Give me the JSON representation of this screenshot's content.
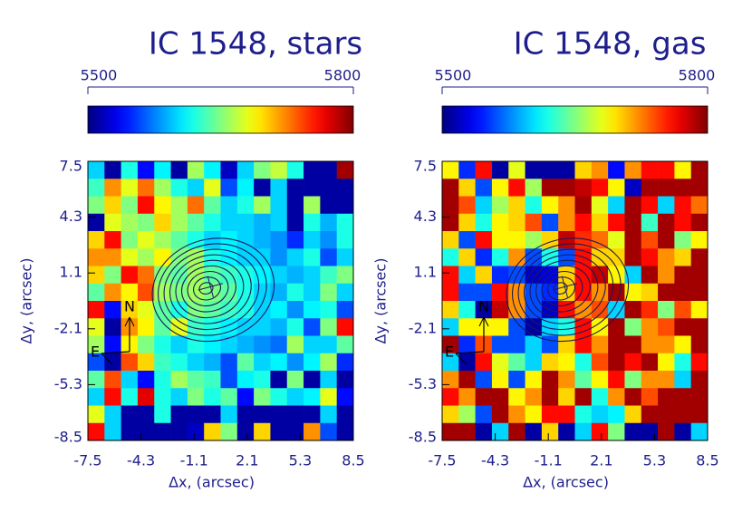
{
  "chart_data": [
    {
      "type": "heatmap",
      "title": "IC 1548, stars",
      "xlabel": "Δx, (arcsec)",
      "ylabel": "Δy, (arcsec)",
      "xlim": [
        -7.5,
        8.5
      ],
      "ylim": [
        -8.5,
        7.5
      ],
      "xticks": [
        -7.5,
        -4.3,
        -1.1,
        2.1,
        5.3,
        8.5
      ],
      "yticks": [
        -8.5,
        -5.3,
        -2.1,
        1.1,
        4.3,
        7.5
      ],
      "zlim": [
        5500,
        5800
      ],
      "cbar_ticks": [
        5500,
        5800
      ],
      "compass_labels": [
        "N",
        "E"
      ],
      "values": [
        [
          5600,
          5510,
          5620,
          5540,
          5610,
          5510,
          5660,
          5610,
          5520,
          5600,
          5650,
          5670,
          5620,
          5510,
          5510,
          5790
        ],
        [
          5630,
          5720,
          5680,
          5730,
          5660,
          5620,
          5600,
          5680,
          5560,
          5610,
          5510,
          5600,
          5510,
          5510,
          5510,
          5510
        ],
        [
          5650,
          5700,
          5650,
          5760,
          5690,
          5660,
          5730,
          5640,
          5600,
          5620,
          5660,
          5600,
          5510,
          5660,
          5510,
          5510
        ],
        [
          5510,
          5680,
          5660,
          5650,
          5700,
          5660,
          5640,
          5620,
          5600,
          5600,
          5590,
          5600,
          5510,
          5620,
          5590,
          5620
        ],
        [
          5700,
          5760,
          5650,
          5680,
          5660,
          5640,
          5620,
          5600,
          5610,
          5600,
          5590,
          5580,
          5550,
          5600,
          5580,
          5620
        ],
        [
          5720,
          5720,
          5680,
          5660,
          5690,
          5650,
          5660,
          5620,
          5610,
          5600,
          5600,
          5580,
          5600,
          5620,
          5560,
          5600
        ],
        [
          5700,
          5650,
          5760,
          5730,
          5650,
          5640,
          5660,
          5640,
          5630,
          5620,
          5610,
          5600,
          5590,
          5600,
          5630,
          5650
        ],
        [
          5640,
          5720,
          5690,
          5740,
          5660,
          5650,
          5660,
          5650,
          5640,
          5620,
          5600,
          5590,
          5620,
          5600,
          5650,
          5600
        ],
        [
          5760,
          5540,
          5700,
          5680,
          5640,
          5620,
          5650,
          5640,
          5630,
          5620,
          5600,
          5610,
          5580,
          5610,
          5620,
          5560
        ],
        [
          5680,
          5510,
          5720,
          5690,
          5640,
          5680,
          5630,
          5620,
          5610,
          5600,
          5600,
          5590,
          5620,
          5560,
          5650,
          5760
        ],
        [
          5660,
          5540,
          5690,
          5650,
          5620,
          5600,
          5620,
          5610,
          5600,
          5590,
          5580,
          5570,
          5660,
          5600,
          5600,
          5640
        ],
        [
          5560,
          5510,
          5740,
          5700,
          5630,
          5620,
          5600,
          5590,
          5560,
          5640,
          5600,
          5610,
          5580,
          5610,
          5660,
          5550
        ],
        [
          5640,
          5740,
          5600,
          5540,
          5620,
          5660,
          5640,
          5630,
          5560,
          5610,
          5620,
          5510,
          5650,
          5510,
          5600,
          5510
        ],
        [
          5600,
          5760,
          5620,
          5770,
          5620,
          5600,
          5650,
          5620,
          5640,
          5540,
          5650,
          5620,
          5600,
          5610,
          5680,
          5540
        ],
        [
          5680,
          5600,
          5510,
          5510,
          5620,
          5510,
          5510,
          5510,
          5600,
          5510,
          5510,
          5510,
          5510,
          5510,
          5600,
          5510
        ],
        [
          5760,
          5600,
          5510,
          5510,
          5510,
          5510,
          5520,
          5700,
          5650,
          5510,
          5700,
          5510,
          5510,
          5720,
          5560,
          5510
        ]
      ]
    },
    {
      "type": "heatmap",
      "title": "IC 1548, gas",
      "xlabel": "Δx, (arcsec)",
      "ylabel": "Δy, (arcsec)",
      "xlim": [
        -7.5,
        8.5
      ],
      "ylim": [
        -8.5,
        7.5
      ],
      "xticks": [
        -7.5,
        -4.3,
        -1.1,
        2.1,
        5.3,
        8.5
      ],
      "yticks": [
        -8.5,
        -5.3,
        -2.1,
        1.1,
        4.3,
        7.5
      ],
      "zlim": [
        5500,
        5800
      ],
      "cbar_ticks": [
        5500,
        5800
      ],
      "compass_labels": [
        "N",
        "E"
      ],
      "values": [
        [
          5690,
          5550,
          5760,
          5510,
          5680,
          5510,
          5510,
          5510,
          5700,
          5720,
          5540,
          5720,
          5760,
          5760,
          5690,
          5790
        ],
        [
          5790,
          5700,
          5560,
          5690,
          5760,
          5660,
          5790,
          5790,
          5780,
          5760,
          5690,
          5520,
          5790,
          5790,
          5790,
          5790
        ],
        [
          5790,
          5740,
          5600,
          5660,
          5700,
          5620,
          5690,
          5720,
          5790,
          5680,
          5600,
          5790,
          5760,
          5600,
          5760,
          5730
        ],
        [
          5790,
          5700,
          5620,
          5690,
          5700,
          5740,
          5560,
          5720,
          5760,
          5700,
          5760,
          5790,
          5630,
          5790,
          5760,
          5790
        ],
        [
          5700,
          5560,
          5760,
          5690,
          5690,
          5660,
          5700,
          5780,
          5750,
          5730,
          5680,
          5790,
          5740,
          5790,
          5650,
          5690
        ],
        [
          5620,
          5700,
          5550,
          5620,
          5720,
          5560,
          5620,
          5560,
          5760,
          5700,
          5700,
          5790,
          5760,
          5720,
          5700,
          5790
        ],
        [
          5760,
          5600,
          5700,
          5550,
          5560,
          5520,
          5530,
          5700,
          5760,
          5780,
          5690,
          5600,
          5790,
          5720,
          5790,
          5790
        ],
        [
          5760,
          5560,
          5560,
          5760,
          5720,
          5560,
          5550,
          5700,
          5760,
          5720,
          5790,
          5690,
          5700,
          5790,
          5790,
          5790
        ],
        [
          5700,
          5620,
          5510,
          5780,
          5720,
          5560,
          5520,
          5760,
          5720,
          5740,
          5600,
          5790,
          5750,
          5650,
          5740,
          5690
        ],
        [
          5600,
          5690,
          5690,
          5690,
          5560,
          5510,
          5600,
          5620,
          5760,
          5690,
          5790,
          5650,
          5720,
          5740,
          5790,
          5790
        ],
        [
          5790,
          5550,
          5740,
          5560,
          5560,
          5600,
          5560,
          5700,
          5760,
          5720,
          5790,
          5790,
          5720,
          5720,
          5690,
          5790
        ],
        [
          5600,
          5510,
          5760,
          5680,
          5640,
          5600,
          5700,
          5690,
          5620,
          5740,
          5790,
          5760,
          5790,
          5690,
          5620,
          5760
        ],
        [
          5720,
          5790,
          5560,
          5690,
          5560,
          5690,
          5790,
          5720,
          5640,
          5690,
          5760,
          5650,
          5720,
          5720,
          5600,
          5790
        ],
        [
          5760,
          5720,
          5790,
          5790,
          5690,
          5720,
          5790,
          5700,
          5790,
          5620,
          5720,
          5790,
          5740,
          5790,
          5790,
          5790
        ],
        [
          5700,
          5660,
          5560,
          5790,
          5720,
          5690,
          5760,
          5760,
          5620,
          5600,
          5610,
          5700,
          5790,
          5790,
          5790,
          5790
        ],
        [
          5790,
          5790,
          5510,
          5600,
          5790,
          5510,
          5700,
          5510,
          5600,
          5760,
          5650,
          5510,
          5510,
          5790,
          5510,
          5600
        ]
      ]
    }
  ]
}
